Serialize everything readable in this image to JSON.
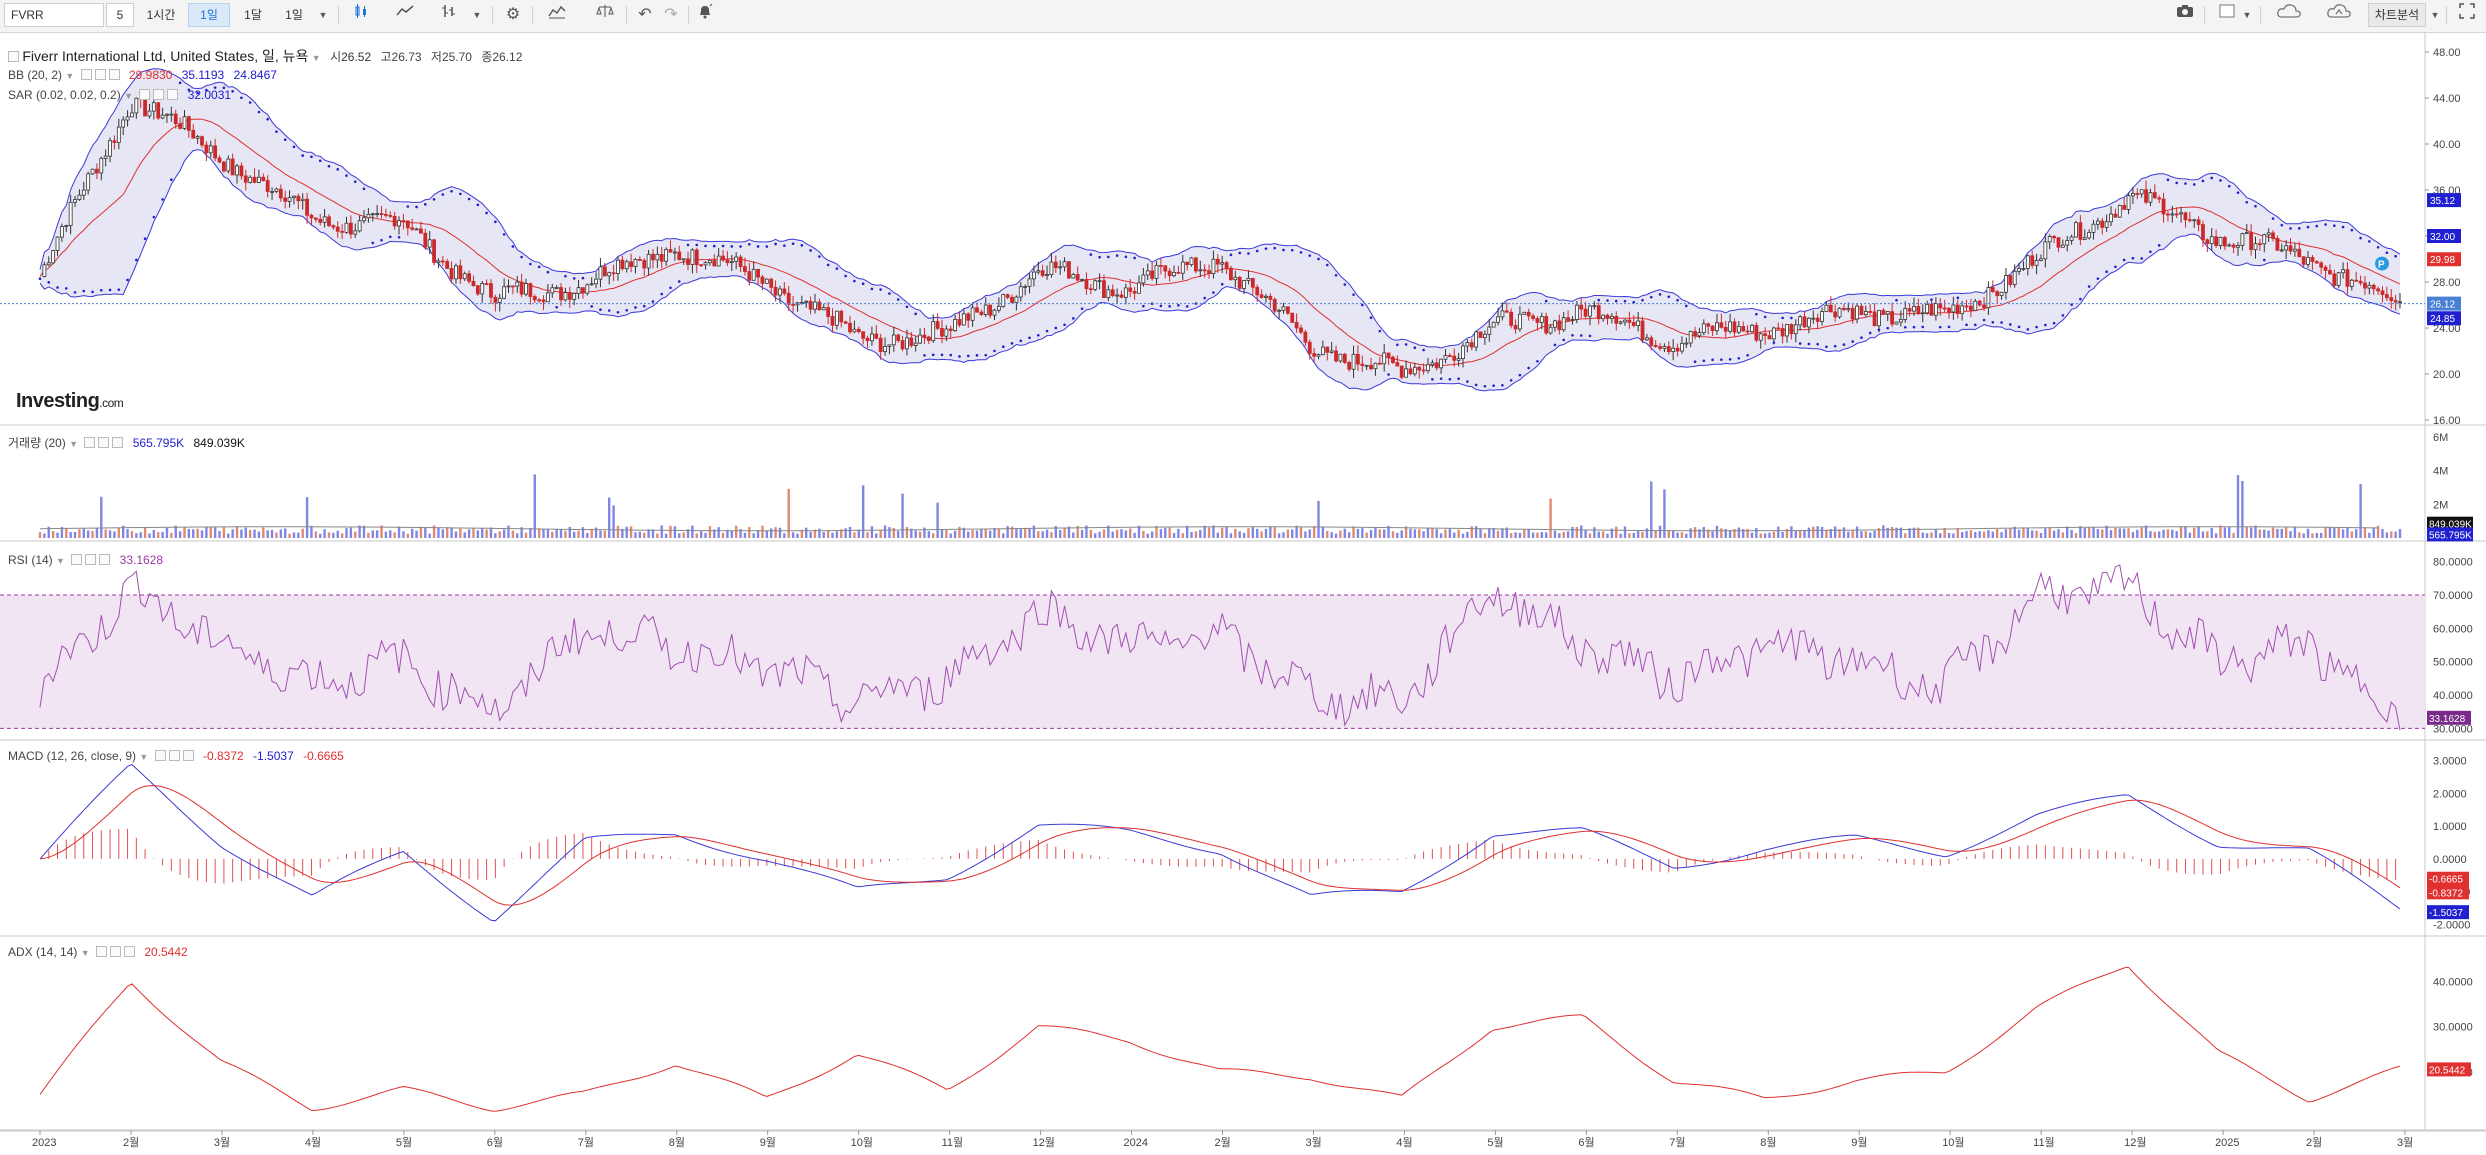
{
  "toolbar": {
    "symbol": "FVRR",
    "interval_value": "5",
    "intervals": [
      "1시간",
      "1일",
      "1달",
      "1일"
    ],
    "right_label": "차트분석",
    "icons": [
      "candlestick-icon",
      "line-chart-icon",
      "bar-type-icon",
      "settings-gear-icon",
      "indicators-icon",
      "compare-scale-icon",
      "undo-icon",
      "redo-icon",
      "alert-bell-icon",
      "camera-icon",
      "layout-icon",
      "cloud-save-icon",
      "cloud-upload-icon",
      "fullscreen-icon"
    ]
  },
  "main": {
    "title": "Fiverr International Ltd, United States, 일, 뉴욕",
    "open_label": "시",
    "open": "26.52",
    "high_label": "고",
    "high": "26.73",
    "low_label": "저",
    "low": "25.70",
    "close_label": "종",
    "close": "26.12",
    "bb_label": "BB (20, 2)",
    "bb_mid": "29.9830",
    "bb_upper": "35.1193",
    "bb_lower": "24.8467",
    "sar_label": "SAR (0.02, 0.02, 0.2)",
    "sar_value": "32.0031",
    "logo": "Investing",
    "logo_suffix": ".com",
    "y_ticks": [
      "48.00",
      "44.00",
      "40.00",
      "36.00",
      "32.00",
      "28.00",
      "24.00",
      "20.00",
      "16.00"
    ],
    "price_tags": [
      {
        "text": "35.12",
        "color": "#2020d0"
      },
      {
        "text": "32.00",
        "color": "#2020d0"
      },
      {
        "text": "29.98",
        "color": "#e03030"
      },
      {
        "text": "26.12",
        "color": "#4a7fd6"
      },
      {
        "text": "24.85",
        "color": "#2020d0"
      }
    ]
  },
  "volume": {
    "label": "거래량 (20)",
    "value1": "565.795K",
    "value2": "849.039K",
    "y_ticks": [
      "6M",
      "4M",
      "2M"
    ],
    "tags": [
      {
        "text": "849.039K",
        "color": "#111111"
      },
      {
        "text": "565.795K",
        "color": "#2020d0"
      }
    ]
  },
  "rsi": {
    "label": "RSI (14)",
    "value": "33.1628",
    "y_ticks": [
      "80.0000",
      "70.0000",
      "60.0000",
      "50.0000",
      "40.0000",
      "30.0000"
    ],
    "tag": "33.1628"
  },
  "macd": {
    "label": "MACD (12, 26, close, 9)",
    "v1": "-0.8372",
    "v2": "-1.5037",
    "v3": "-0.6665",
    "y_ticks": [
      "3.0000",
      "2.0000",
      "1.0000",
      "0.0000",
      "-1.0000",
      "-2.0000"
    ],
    "tags": [
      {
        "text": "-0.6665",
        "color": "#e03030"
      },
      {
        "text": "-0.8372",
        "color": "#e03030"
      },
      {
        "text": "-1.5037",
        "color": "#2020d0"
      }
    ]
  },
  "adx": {
    "label": "ADX (14, 14)",
    "value": "20.5442",
    "y_ticks": [
      "40.0000",
      "30.0000",
      "20.0000"
    ],
    "tag": "20.5442"
  },
  "x_labels": [
    "2023",
    "2월",
    "3월",
    "4월",
    "5월",
    "6월",
    "7월",
    "8월",
    "9월",
    "10월",
    "11월",
    "12월",
    "2024",
    "2월",
    "3월",
    "4월",
    "5월",
    "6월",
    "7월",
    "8월",
    "9월",
    "10월",
    "11월",
    "12월",
    "2025",
    "2월",
    "3월"
  ],
  "chart_data": {
    "type": "candlestick",
    "title": "Fiverr International Ltd, United States, 일, 뉴욕",
    "x": [
      "2023-01",
      "2023-02",
      "2023-03",
      "2023-04",
      "2023-05",
      "2023-06",
      "2023-07",
      "2023-08",
      "2023-09",
      "2023-10",
      "2023-11",
      "2023-12",
      "2024-01",
      "2024-02",
      "2024-03",
      "2024-04",
      "2024-05",
      "2024-06",
      "2024-07",
      "2024-08",
      "2024-09",
      "2024-10",
      "2024-11",
      "2024-12",
      "2025-01",
      "2025-02",
      "2025-03"
    ],
    "price_close": [
      28.5,
      44,
      39,
      33.5,
      33,
      26.5,
      28,
      31,
      28,
      23,
      23.5,
      29,
      27.5,
      30,
      22.5,
      20,
      24,
      25.5,
      23,
      24,
      25.5,
      25,
      30,
      35.5,
      32,
      30,
      26.1
    ],
    "rsi": [
      42,
      72,
      55,
      44,
      50,
      35,
      60,
      55,
      48,
      38,
      45,
      65,
      55,
      58,
      40,
      38,
      72,
      55,
      45,
      55,
      50,
      42,
      70,
      72,
      50,
      55,
      33
    ],
    "macd": [
      0,
      2.8,
      0.5,
      -1.2,
      0.2,
      -1.8,
      0.5,
      0.8,
      0,
      -1,
      -0.5,
      1,
      0.8,
      0.3,
      -1.2,
      -1,
      0.8,
      0.8,
      -0.2,
      0.3,
      0.6,
      0.2,
      1.3,
      1.9,
      0.5,
      0.2,
      -1.5
    ],
    "adx": [
      15,
      40,
      22,
      12,
      16,
      12,
      15,
      22,
      14,
      24,
      16,
      30,
      27,
      20,
      19,
      14,
      30,
      32,
      18,
      14,
      18,
      20,
      34,
      44,
      24,
      14,
      20.5
    ],
    "volume_scale_max_M": 6,
    "ylim_price": [
      16,
      48
    ],
    "ylim_rsi": [
      30,
      80
    ],
    "ylim_macd": [
      -2,
      3
    ],
    "ylim_adx": [
      10,
      45
    ]
  }
}
